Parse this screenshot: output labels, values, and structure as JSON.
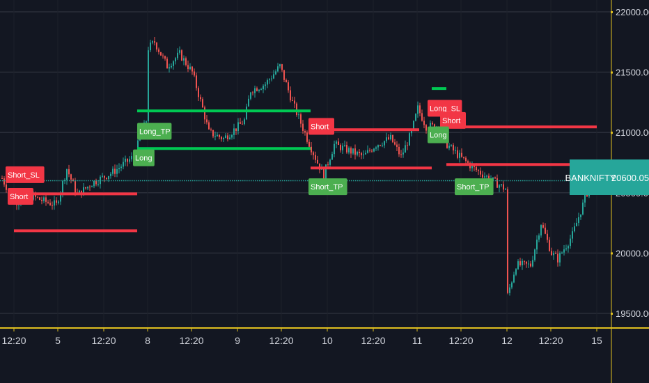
{
  "chart_data": {
    "type": "candlestick",
    "symbol": "BANKNIFTY",
    "last_price": "20600.05",
    "last_price_value": 20600.05,
    "ylim": [
      19400,
      22100
    ],
    "y_ticks": [
      {
        "value": 22000,
        "label": "22000.00"
      },
      {
        "value": 21500,
        "label": "21500.00"
      },
      {
        "value": 21000,
        "label": "21000.00"
      },
      {
        "value": 20500,
        "label": "20500.00"
      },
      {
        "value": 20000,
        "label": "20000.00"
      },
      {
        "value": 19500,
        "label": "19500.00"
      }
    ],
    "x_range": [
      0,
      290
    ],
    "x_ticks": [
      {
        "t": 6,
        "label": "12:20"
      },
      {
        "t": 27,
        "label": "5"
      },
      {
        "t": 49,
        "label": "12:20"
      },
      {
        "t": 70,
        "label": "8"
      },
      {
        "t": 91,
        "label": "12:20"
      },
      {
        "t": 113,
        "label": "9"
      },
      {
        "t": 134,
        "label": "12:20"
      },
      {
        "t": 156,
        "label": "10"
      },
      {
        "t": 178,
        "label": "12:20"
      },
      {
        "t": 199,
        "label": "11"
      },
      {
        "t": 220,
        "label": "12:20"
      },
      {
        "t": 242,
        "label": "12"
      },
      {
        "t": 263,
        "label": "12:20"
      },
      {
        "t": 285,
        "label": "15"
      }
    ],
    "price_path": [
      [
        0,
        20620
      ],
      [
        6,
        20420
      ],
      [
        13,
        20480
      ],
      [
        20,
        20430
      ],
      [
        26,
        20400
      ],
      [
        31,
        20700
      ],
      [
        36,
        20480
      ],
      [
        43,
        20580
      ],
      [
        53,
        20670
      ],
      [
        63,
        20800
      ],
      [
        66,
        20950
      ],
      [
        69,
        21100
      ],
      [
        70,
        21700
      ],
      [
        73,
        21750
      ],
      [
        79,
        21550
      ],
      [
        85,
        21650
      ],
      [
        91,
        21500
      ],
      [
        96,
        21200
      ],
      [
        99,
        21000
      ],
      [
        106,
        20950
      ],
      [
        113,
        21050
      ],
      [
        116,
        21100
      ],
      [
        119,
        21350
      ],
      [
        126,
        21400
      ],
      [
        133,
        21550
      ],
      [
        139,
        21250
      ],
      [
        146,
        20950
      ],
      [
        151,
        20750
      ],
      [
        154,
        20650
      ],
      [
        159,
        20900
      ],
      [
        166,
        20850
      ],
      [
        173,
        20800
      ],
      [
        179,
        20900
      ],
      [
        186,
        20950
      ],
      [
        191,
        20800
      ],
      [
        196,
        21000
      ],
      [
        199,
        21200
      ],
      [
        203,
        21050
      ],
      [
        208,
        21050
      ],
      [
        213,
        20900
      ],
      [
        219,
        20800
      ],
      [
        226,
        20700
      ],
      [
        233,
        20620
      ],
      [
        241,
        20530
      ],
      [
        242,
        19650
      ],
      [
        246,
        19900
      ],
      [
        253,
        19900
      ],
      [
        258,
        20250
      ],
      [
        263,
        20000
      ],
      [
        266,
        19950
      ],
      [
        273,
        20150
      ],
      [
        278,
        20400
      ],
      [
        281,
        20550
      ]
    ],
    "levels": [
      {
        "type": "short_sl",
        "price": 20185,
        "from": 6,
        "to": 65,
        "color": "#f23645"
      },
      {
        "type": "short_entry",
        "price": 20491,
        "from": 6,
        "to": 65,
        "color": "#f23645"
      },
      {
        "type": "long_tp",
        "price": 21179,
        "from": 65,
        "to": 148,
        "color": "#00c853"
      },
      {
        "type": "long_entry",
        "price": 20867,
        "from": 65,
        "to": 148,
        "color": "#00c853"
      },
      {
        "type": "short_entry",
        "price": 21023,
        "from": 148,
        "to": 200,
        "color": "#f23645"
      },
      {
        "type": "short_tp",
        "price": 20705,
        "from": 148,
        "to": 206,
        "color": "#f23645"
      },
      {
        "type": "long_tp",
        "price": 21364,
        "from": 206,
        "to": 213,
        "color": "#00c853"
      },
      {
        "type": "short_entry",
        "price": 21046,
        "from": 213,
        "to": 285,
        "color": "#f23645"
      },
      {
        "type": "short_tp",
        "price": 20734,
        "from": 213,
        "to": 273,
        "color": "#f23645"
      }
    ],
    "signals": [
      {
        "label": "Short_SL",
        "t": 2,
        "price": 20650,
        "color": "#f23645"
      },
      {
        "label": "Short",
        "t": 3,
        "price": 20470,
        "color": "#f23645"
      },
      {
        "label": "Long_TP",
        "t": 65,
        "price": 21010,
        "color": "#4caf50"
      },
      {
        "label": "Long",
        "t": 63,
        "price": 20790,
        "color": "#4caf50"
      },
      {
        "label": "Short",
        "t": 147,
        "price": 21050,
        "color": "#f23645"
      },
      {
        "label": "Short_TP",
        "t": 147,
        "price": 20550,
        "color": "#4caf50"
      },
      {
        "label": "Long_SL",
        "t": 204,
        "price": 21200,
        "color": "#f23645"
      },
      {
        "label": "Short",
        "t": 210,
        "price": 21100,
        "color": "#f23645"
      },
      {
        "label": "Long",
        "t": 204,
        "price": 20980,
        "color": "#4caf50"
      },
      {
        "label": "Short_TP",
        "t": 217,
        "price": 20550,
        "color": "#4caf50"
      }
    ],
    "colors": {
      "up": "#26a69a",
      "down": "#ef5350",
      "background": "#131722",
      "grid": "#2a2e39",
      "axis": "#e0c020",
      "last": "#26a69a"
    }
  }
}
